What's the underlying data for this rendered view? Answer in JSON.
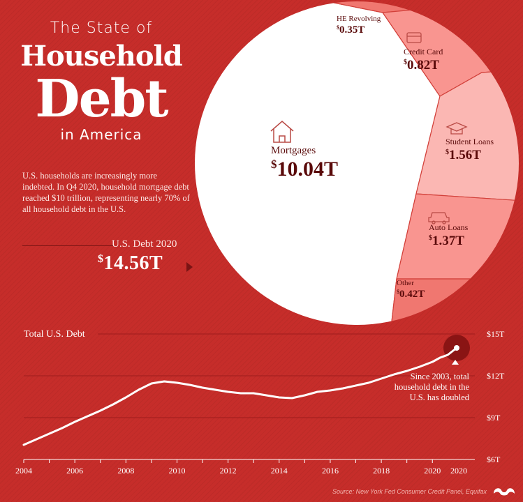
{
  "title": {
    "line1": "The State of",
    "line2": "Household",
    "line3": "Debt",
    "line4": "in America"
  },
  "intro_text": "U.S. households are increasingly more indebted. In Q4 2020, household mortgage debt reached $10 trillion, representing nearly 70% of all household debt in the U.S.",
  "us_debt": {
    "label": "U.S. Debt 2020",
    "currency": "$",
    "value": "14.56T"
  },
  "source": "Source: New York Fed Consumer Credit Panel, Equifax",
  "colors": {
    "background": "#c62d2a",
    "mortgage": "#ffffff",
    "slice_light": "#fbb7b3",
    "slice_mid": "#f99590",
    "slice_dark": "#f07770",
    "label_text": "#5a0a0a",
    "line": "#ffffff",
    "marker": "#8a1414"
  },
  "chart_data": [
    {
      "type": "pie",
      "title": "",
      "unit": "$ trillions",
      "slices": [
        {
          "name": "Mortgages",
          "value": 10.04,
          "label": "10.04T",
          "icon": "house-icon",
          "color": "#ffffff"
        },
        {
          "name": "HE Revolving",
          "value": 0.35,
          "label": "0.35T",
          "icon": "",
          "color": "#f07770"
        },
        {
          "name": "Credit Card",
          "value": 0.82,
          "label": "0.82T",
          "icon": "credit-card-icon",
          "color": "#f99590"
        },
        {
          "name": "Student Loans",
          "value": 1.56,
          "label": "1.56T",
          "icon": "graduation-cap-icon",
          "color": "#fbb7b3"
        },
        {
          "name": "Auto Loans",
          "value": 1.37,
          "label": "1.37T",
          "icon": "car-icon",
          "color": "#f99590"
        },
        {
          "name": "Other",
          "value": 0.42,
          "label": "0.42T",
          "icon": "",
          "color": "#f07770"
        }
      ]
    },
    {
      "type": "line",
      "title": "Total U.S. Debt",
      "xlabel": "",
      "ylabel": "",
      "x_ticks": [
        "2004",
        "2006",
        "2008",
        "2010",
        "2012",
        "2014",
        "2016",
        "2018",
        "2020",
        "2020"
      ],
      "y_ticks": [
        "$6T",
        "$9T",
        "$12T",
        "$15T"
      ],
      "ylim": [
        6,
        15
      ],
      "xlim": [
        2004,
        2020.95
      ],
      "grid": true,
      "annotation": "Since 2003, total household debt in the U.S. has doubled",
      "series": [
        {
          "name": "",
          "points": [
            [
              2004.0,
              7.05
            ],
            [
              2004.5,
              7.45
            ],
            [
              2005.0,
              7.85
            ],
            [
              2005.5,
              8.25
            ],
            [
              2006.0,
              8.7
            ],
            [
              2006.5,
              9.1
            ],
            [
              2007.0,
              9.5
            ],
            [
              2007.5,
              9.95
            ],
            [
              2008.0,
              10.45
            ],
            [
              2008.5,
              11.0
            ],
            [
              2009.0,
              11.45
            ],
            [
              2009.5,
              11.6
            ],
            [
              2010.0,
              11.5
            ],
            [
              2010.5,
              11.35
            ],
            [
              2011.0,
              11.15
            ],
            [
              2011.5,
              11.0
            ],
            [
              2012.0,
              10.85
            ],
            [
              2012.5,
              10.75
            ],
            [
              2013.0,
              10.75
            ],
            [
              2013.5,
              10.6
            ],
            [
              2014.0,
              10.45
            ],
            [
              2014.5,
              10.4
            ],
            [
              2015.0,
              10.6
            ],
            [
              2015.5,
              10.85
            ],
            [
              2016.0,
              10.95
            ],
            [
              2016.5,
              11.1
            ],
            [
              2017.0,
              11.3
            ],
            [
              2017.5,
              11.5
            ],
            [
              2018.0,
              11.8
            ],
            [
              2018.5,
              12.1
            ],
            [
              2019.0,
              12.35
            ],
            [
              2019.5,
              12.65
            ],
            [
              2020.0,
              13.0
            ],
            [
              2020.3,
              13.3
            ],
            [
              2020.6,
              13.5
            ],
            [
              2020.95,
              14.0
            ]
          ]
        }
      ]
    }
  ]
}
